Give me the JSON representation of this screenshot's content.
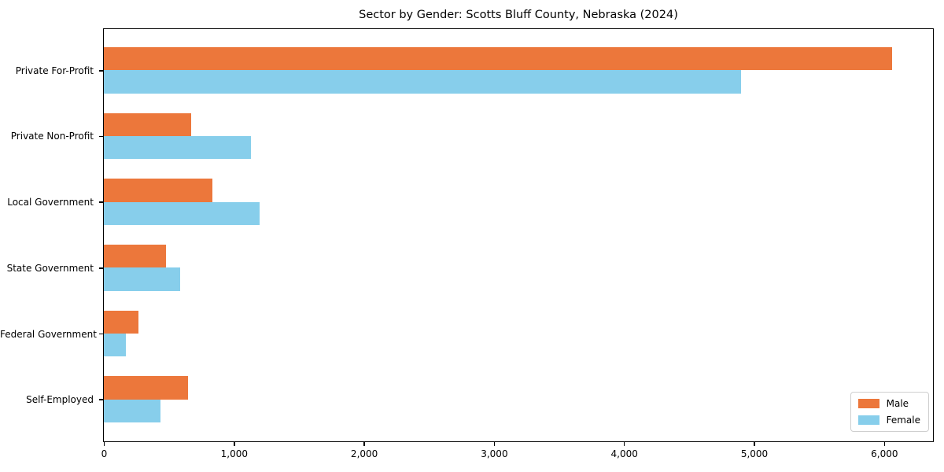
{
  "title": "Sector by Gender: Scotts Bluff County, Nebraska (2024)",
  "legend": {
    "position": "lower right",
    "items": [
      {
        "label": "Male",
        "color": "#ec773b"
      },
      {
        "label": "Female",
        "color": "#87ceeb"
      }
    ]
  },
  "colors": {
    "male": "#ec773b",
    "female": "#87ceeb",
    "axis": "#000000",
    "legend_border": "#cfcfcf"
  },
  "chart_data": {
    "type": "bar",
    "orientation": "horizontal",
    "title": "Sector by Gender: Scotts Bluff County, Nebraska (2024)",
    "xlabel": "",
    "ylabel": "",
    "grid": false,
    "categories": [
      "Private For-Profit",
      "Private Non-Profit",
      "Local Government",
      "State Government",
      "Federal Government",
      "Self-Employed"
    ],
    "series": [
      {
        "name": "Male",
        "color": "#ec773b",
        "values": [
          6060,
          670,
          835,
          480,
          265,
          645
        ]
      },
      {
        "name": "Female",
        "color": "#87ceeb",
        "values": [
          4900,
          1130,
          1200,
          585,
          170,
          435
        ]
      }
    ],
    "xlim": [
      0,
      6370
    ],
    "xticks": [
      0,
      1000,
      2000,
      3000,
      4000,
      5000,
      6000
    ],
    "xtick_labels": [
      "0",
      "1,000",
      "2,000",
      "3,000",
      "4,000",
      "5,000",
      "6,000"
    ],
    "legend_position": "lower right",
    "bar_fraction": 0.35,
    "outer_margin_fraction": 0.625
  }
}
